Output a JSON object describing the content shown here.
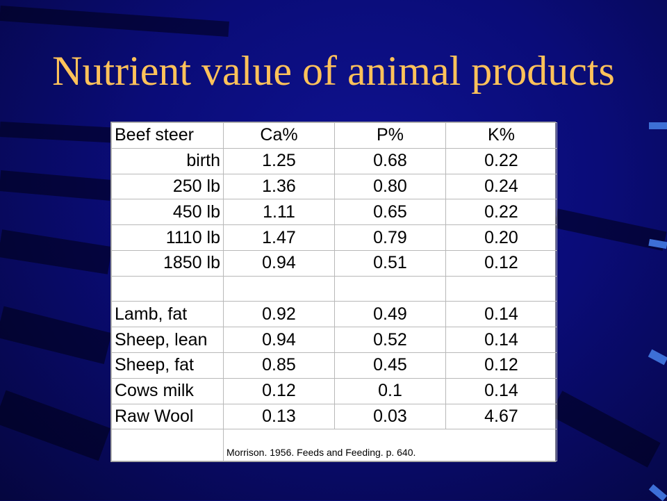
{
  "title": "Nutrient value of animal products",
  "table": {
    "header": [
      "Beef steer",
      "Ca%",
      "P%",
      "K%"
    ],
    "beef_rows": [
      {
        "label": "birth",
        "ca": "1.25",
        "p": "0.68",
        "k": "0.22"
      },
      {
        "label": "250 lb",
        "ca": "1.36",
        "p": "0.80",
        "k": "0.24"
      },
      {
        "label": "450 lb",
        "ca": "1.11",
        "p": "0.65",
        "k": "0.22"
      },
      {
        "label": "1110 lb",
        "ca": "1.47",
        "p": "0.79",
        "k": "0.20"
      },
      {
        "label": "1850 lb",
        "ca": "0.94",
        "p": "0.51",
        "k": "0.12"
      }
    ],
    "other_rows": [
      {
        "label": "Lamb, fat",
        "ca": "0.92",
        "p": "0.49",
        "k": "0.14"
      },
      {
        "label": "Sheep, lean",
        "ca": "0.94",
        "p": "0.52",
        "k": "0.14"
      },
      {
        "label": "Sheep, fat",
        "ca": "0.85",
        "p": "0.45",
        "k": "0.12"
      },
      {
        "label": "Cows milk",
        "ca": "0.12",
        "p": "0.1",
        "k": "0.14"
      },
      {
        "label": "Raw Wool",
        "ca": "0.13",
        "p": "0.03",
        "k": "4.67"
      }
    ],
    "source": "Morrison. 1956. Feeds and Feeding. p. 640."
  },
  "colors": {
    "background": "#0a0c78",
    "title": "#ffc25a",
    "accent_marks": "#3d6fd6"
  }
}
